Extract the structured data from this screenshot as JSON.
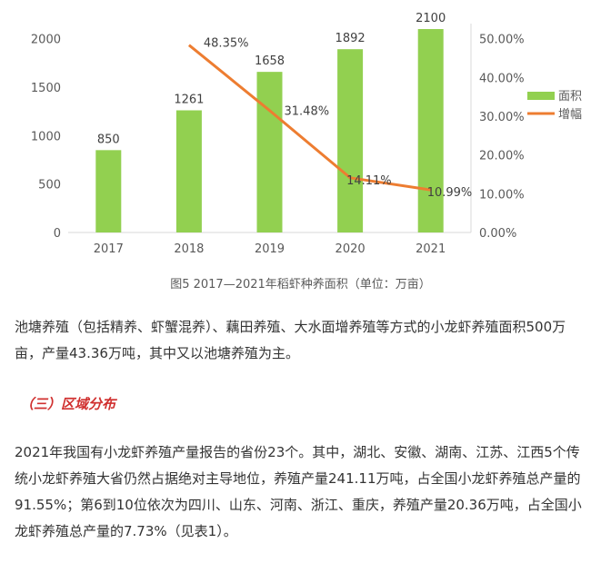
{
  "chart_data": {
    "type": "bar+line",
    "categories": [
      "2017",
      "2018",
      "2019",
      "2020",
      "2021"
    ],
    "series": [
      {
        "name": "面积",
        "type": "bar",
        "axis": "left",
        "values": [
          850,
          1261,
          1658,
          1892,
          2100
        ],
        "labels": [
          "850",
          "1261",
          "1658",
          "1892",
          "2100"
        ]
      },
      {
        "name": "增幅",
        "type": "line",
        "axis": "right",
        "values": [
          null,
          48.35,
          31.48,
          14.11,
          10.99
        ],
        "labels": [
          "",
          "48.35%",
          "31.48%",
          "14.11%",
          "10.99%"
        ]
      }
    ],
    "left_axis": {
      "ylim": [
        0,
        2100
      ],
      "ticks": [
        "0",
        "500",
        "1000",
        "1500",
        "2000"
      ]
    },
    "right_axis": {
      "ylim": [
        0,
        52.5
      ],
      "ticks": [
        "0.00%",
        "10.00%",
        "20.00%",
        "30.00%",
        "40.00%",
        "50.00%"
      ]
    },
    "colors": {
      "bar": "#92d050",
      "line": "#ed7d31",
      "axis": "#d9d9d9"
    },
    "legend_position": "right",
    "caption": "图5 2017—2021年稻虾种养面积（单位：万亩）"
  },
  "paragraphs": {
    "p1": "池塘养殖（包括精养、虾蟹混养）、藕田养殖、大水面增养殖等方式的小龙虾养殖面积500万亩，产量43.36万吨，其中又以池塘养殖为主。",
    "heading": "（三）区域分布",
    "p2": "2021年我国有小龙虾养殖产量报告的省份23个。其中，湖北、安徽、湖南、江苏、江西5个传统小龙虾养殖大省仍然占据绝对主导地位，养殖产量241.11万吨，占全国小龙虾养殖总产量的91.55%；第6到10位依次为四川、山东、河南、浙江、重庆，养殖产量20.36万吨，占全国小龙虾养殖总产量的7.73%（见表1）。"
  }
}
